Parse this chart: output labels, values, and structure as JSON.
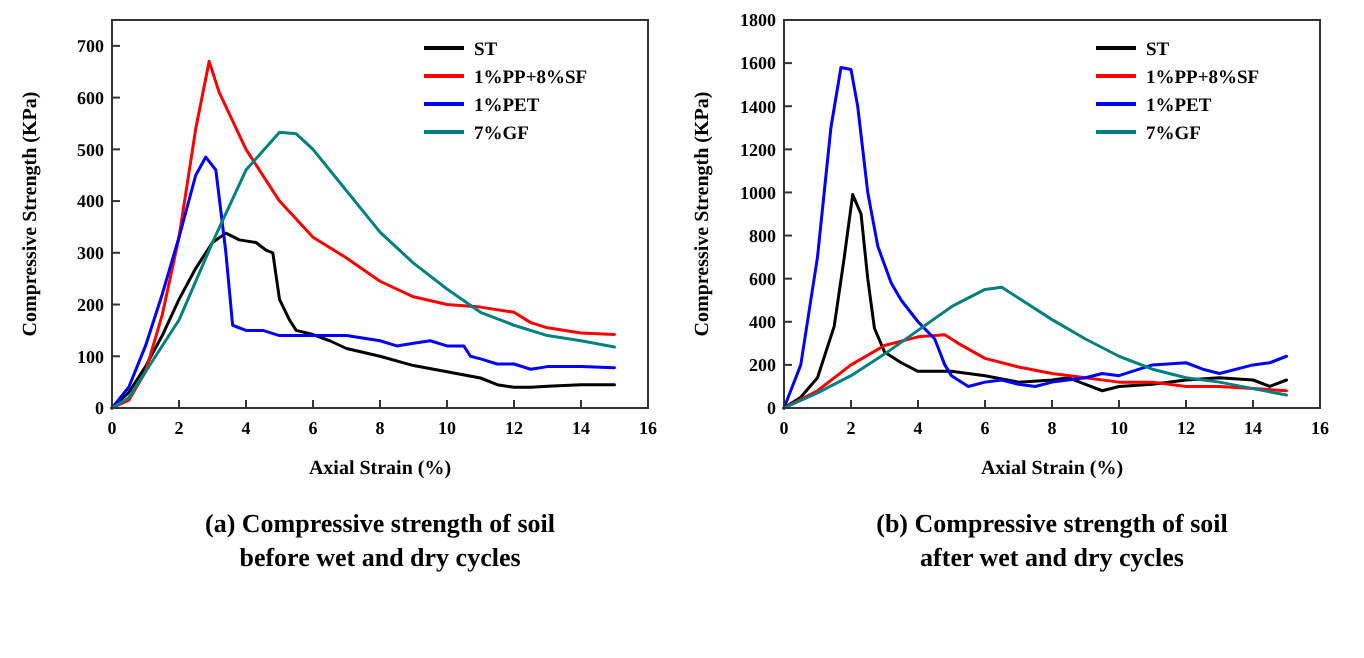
{
  "chart_data": [
    {
      "type": "line",
      "title": "(a) Compressive strength of soil before wet and dry cycles",
      "xlabel": "Axial Strain (%)",
      "ylabel": "Compressive Strength (KPa)",
      "xlim": [
        0,
        16
      ],
      "xticks": [
        0,
        2,
        4,
        6,
        8,
        10,
        12,
        14,
        16
      ],
      "ylim": [
        0,
        750
      ],
      "yticks": [
        0,
        100,
        200,
        300,
        400,
        500,
        600,
        700
      ],
      "legend": "top right",
      "grid": false,
      "line_style": "solid",
      "series": [
        {
          "name": "ST",
          "color": "#000000",
          "x": [
            0,
            0.5,
            1,
            1.5,
            2,
            2.5,
            3,
            3.4,
            3.8,
            4.3,
            4.6,
            4.8,
            5,
            5.3,
            5.5,
            6,
            6.5,
            7,
            8,
            9,
            10,
            11,
            11.5,
            12,
            12.5,
            13,
            14,
            15
          ],
          "values": [
            0,
            30,
            80,
            140,
            210,
            270,
            320,
            338,
            325,
            320,
            305,
            300,
            210,
            170,
            150,
            142,
            130,
            115,
            100,
            82,
            70,
            58,
            45,
            40,
            40,
            42,
            45,
            45
          ]
        },
        {
          "name": "1%PP+8%SF",
          "color": "#ff0000",
          "x": [
            0,
            0.5,
            1,
            1.5,
            2,
            2.5,
            2.9,
            3.2,
            4,
            5,
            6,
            7,
            8,
            9,
            10,
            11,
            12,
            12.5,
            13,
            14,
            15
          ],
          "values": [
            0,
            15,
            70,
            180,
            330,
            540,
            670,
            610,
            500,
            400,
            330,
            290,
            245,
            215,
            200,
            195,
            185,
            165,
            155,
            145,
            142
          ]
        },
        {
          "name": "1%PET",
          "color": "#0000ff",
          "x": [
            0,
            0.5,
            1,
            1.5,
            2,
            2.5,
            2.8,
            3.1,
            3.4,
            3.6,
            4,
            4.5,
            5,
            6,
            7,
            8,
            8.5,
            9,
            9.5,
            10,
            10.5,
            10.7,
            11,
            11.5,
            12,
            12.5,
            13,
            14,
            15
          ],
          "values": [
            0,
            40,
            120,
            220,
            330,
            450,
            485,
            460,
            300,
            160,
            150,
            150,
            140,
            140,
            140,
            130,
            120,
            125,
            130,
            120,
            120,
            100,
            95,
            85,
            85,
            75,
            80,
            80,
            78
          ]
        },
        {
          "name": "7%GF",
          "color": "#008080",
          "x": [
            0,
            0.5,
            1,
            2,
            3,
            4,
            5,
            5.5,
            6,
            7,
            8,
            9,
            10,
            11,
            12,
            13,
            14,
            15
          ],
          "values": [
            0,
            20,
            70,
            170,
            320,
            460,
            533,
            530,
            500,
            420,
            340,
            280,
            230,
            185,
            160,
            140,
            130,
            118
          ]
        }
      ]
    },
    {
      "type": "line",
      "title": "(b) Compressive strength of soil after wet and dry cycles",
      "xlabel": "Axial Strain (%)",
      "ylabel": "Compressive Strength (KPa)",
      "xlim": [
        0,
        16
      ],
      "xticks": [
        0,
        2,
        4,
        6,
        8,
        10,
        12,
        14,
        16
      ],
      "ylim": [
        0,
        1800
      ],
      "yticks": [
        0,
        200,
        400,
        600,
        800,
        1000,
        1200,
        1400,
        1600,
        1800
      ],
      "legend": "top right",
      "grid": false,
      "line_style": "solid",
      "series": [
        {
          "name": "ST",
          "color": "#000000",
          "x": [
            0,
            0.5,
            1,
            1.5,
            1.8,
            2.05,
            2.3,
            2.5,
            2.7,
            3,
            3.5,
            4,
            5,
            6,
            7,
            8,
            8.5,
            9,
            9.5,
            10,
            11,
            12,
            13,
            14,
            14.5,
            15
          ],
          "values": [
            0,
            50,
            140,
            380,
            700,
            990,
            900,
            600,
            370,
            260,
            210,
            170,
            170,
            150,
            120,
            130,
            140,
            110,
            80,
            100,
            110,
            130,
            140,
            130,
            100,
            130
          ]
        },
        {
          "name": "1%PP+8%SF",
          "color": "#ff0000",
          "x": [
            0,
            1,
            2,
            3,
            4,
            4.8,
            5.2,
            6,
            7,
            8,
            9,
            10,
            11,
            12,
            13,
            14,
            15
          ],
          "values": [
            0,
            80,
            200,
            290,
            330,
            340,
            300,
            230,
            190,
            160,
            140,
            120,
            120,
            100,
            100,
            90,
            80
          ]
        },
        {
          "name": "1%PET",
          "color": "#0000ff",
          "x": [
            0,
            0.5,
            1,
            1.4,
            1.7,
            2,
            2.2,
            2.5,
            2.8,
            3.2,
            3.5,
            4,
            4.5,
            4.8,
            5,
            5.5,
            6,
            6.5,
            7,
            7.5,
            8,
            9,
            9.5,
            10,
            11,
            12,
            12.5,
            13,
            14,
            14.5,
            15
          ],
          "values": [
            0,
            200,
            700,
            1300,
            1580,
            1570,
            1400,
            1000,
            750,
            580,
            500,
            400,
            320,
            200,
            150,
            100,
            120,
            130,
            110,
            100,
            120,
            140,
            160,
            150,
            200,
            210,
            180,
            160,
            200,
            210,
            240
          ]
        },
        {
          "name": "7%GF",
          "color": "#008080",
          "x": [
            0,
            1,
            2,
            3,
            4,
            5,
            6,
            6.5,
            7,
            8,
            9,
            10,
            11,
            12,
            13,
            14,
            15
          ],
          "values": [
            0,
            70,
            150,
            250,
            360,
            470,
            550,
            560,
            510,
            410,
            320,
            240,
            180,
            140,
            120,
            90,
            60
          ]
        }
      ]
    }
  ]
}
